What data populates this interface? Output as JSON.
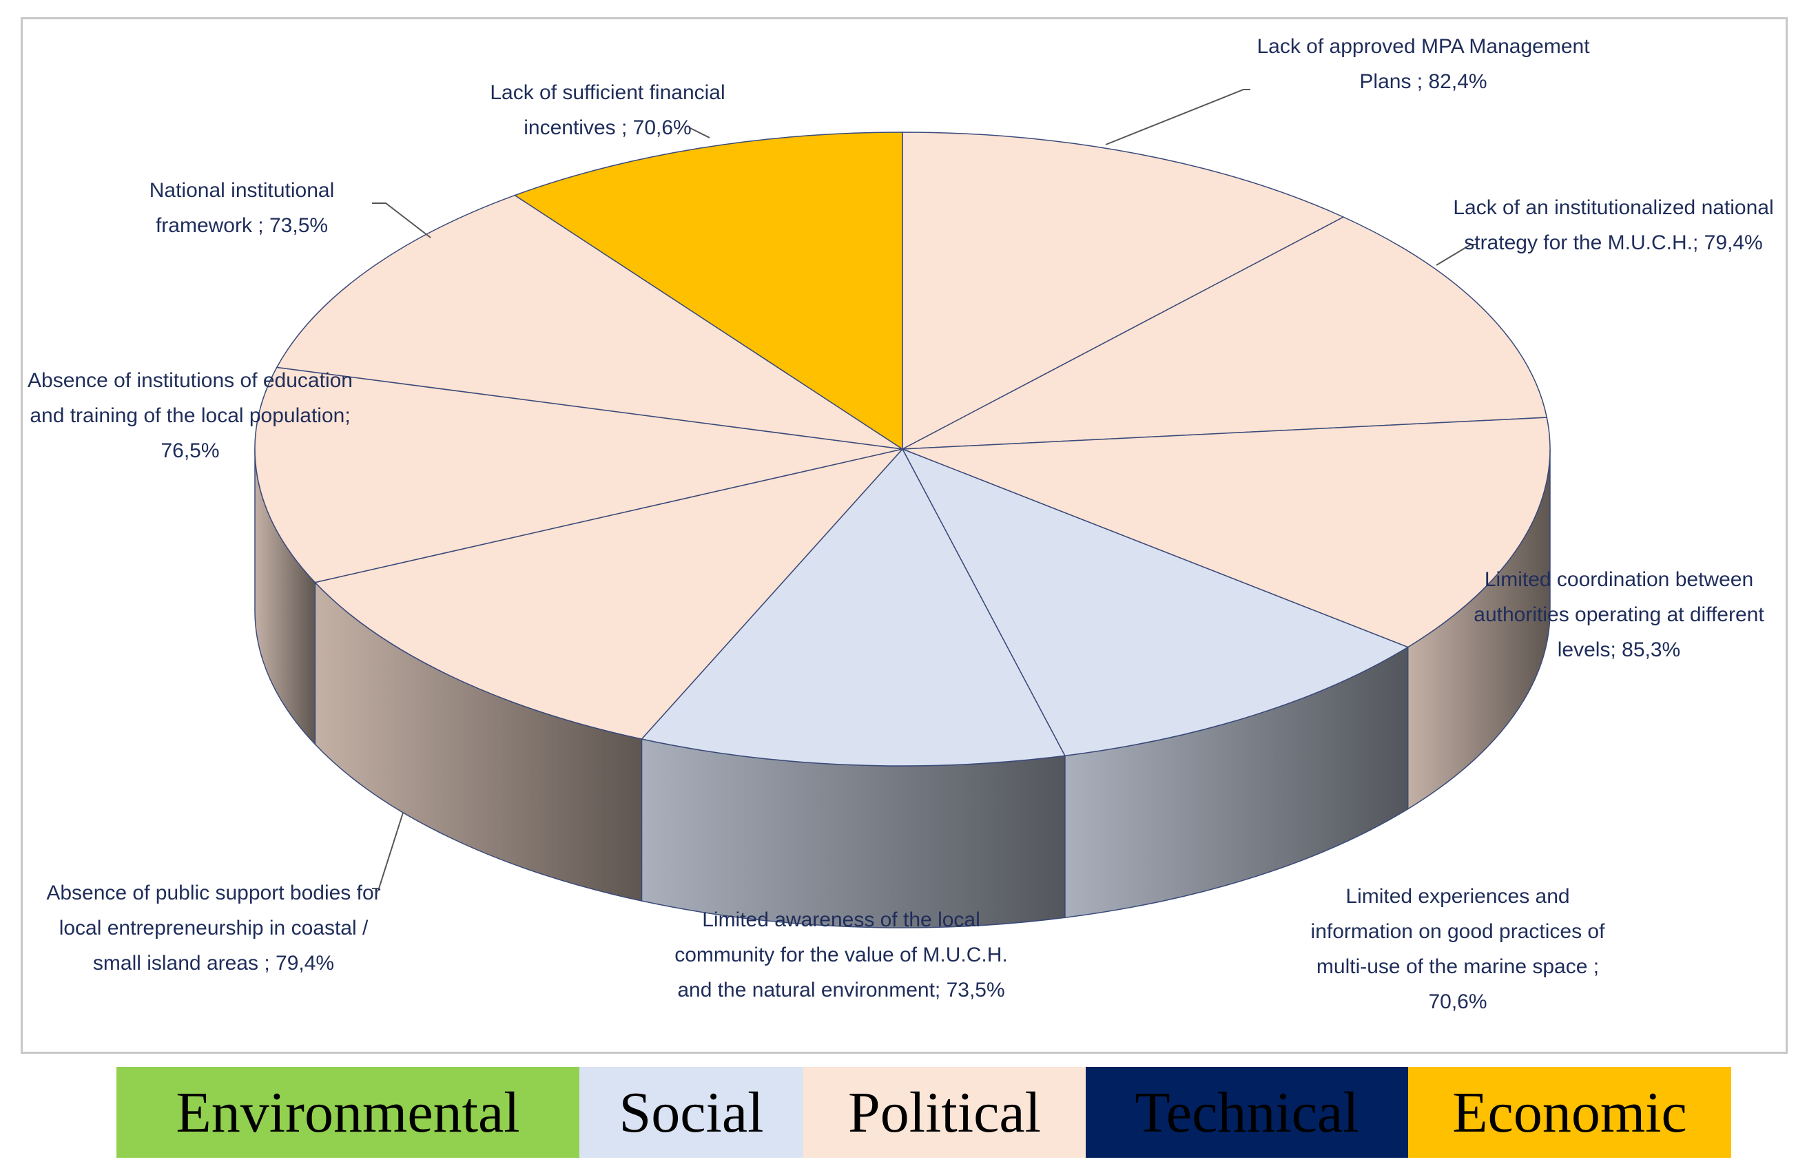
{
  "chart_data": {
    "type": "pie",
    "categories": [
      "Lack of approved MPA Management Plans ;",
      "Lack of an institutionalized national strategy for the M.U.C.H.;",
      "Limited coordination between authorities operating at different levels;",
      "Limited experiences and information on good practices of multi-use of the marine space ;",
      "Limited awareness of the local community for the value of M.U.C.H. and the natural environment;",
      "Absence of public support bodies for local entrepreneurship in coastal / small island areas ;",
      "Absence of institutions of education and training of the local population;",
      "National institutional framework ;",
      "Lack of sufficient financial incentives ;"
    ],
    "values": [
      82.4,
      79.4,
      85.3,
      70.6,
      73.5,
      79.4,
      76.5,
      73.5,
      70.6
    ],
    "value_labels": [
      "82,4%",
      "79,4%",
      "85,3%",
      "70,6%",
      "73,5%",
      "79,4%",
      "76,5%",
      "73,5%",
      "70,6%"
    ],
    "colors": [
      "#FBE3D5",
      "#FBE3D5",
      "#FBE3D5",
      "#DAE2F1",
      "#DAE2F1",
      "#FBE3D5",
      "#FBE3D5",
      "#FBE3D5",
      "#FFC000"
    ],
    "legend": [
      {
        "name": "Environmental",
        "color": "#92D050"
      },
      {
        "name": "Social",
        "color": "#DAE3F3"
      },
      {
        "name": "Political",
        "color": "#FBE5D6"
      },
      {
        "name": "Technical",
        "color": "#002060"
      },
      {
        "name": "Economic",
        "color": "#FFC000"
      }
    ]
  }
}
